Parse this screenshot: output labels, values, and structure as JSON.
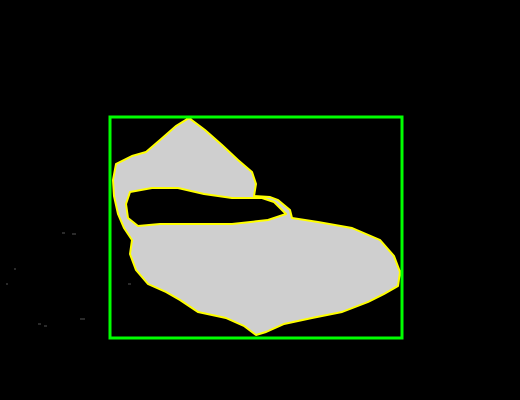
{
  "image": {
    "background_color": "#000000",
    "mask_fill_color": "#cfcfcf",
    "contour_color": "#ffff00",
    "bbox_color": "#00ff00"
  },
  "regions": [
    {
      "kind": "segmentation-mask",
      "label": ""
    }
  ],
  "annotations": [
    {
      "kind": "bounding-box",
      "label": ""
    }
  ]
}
